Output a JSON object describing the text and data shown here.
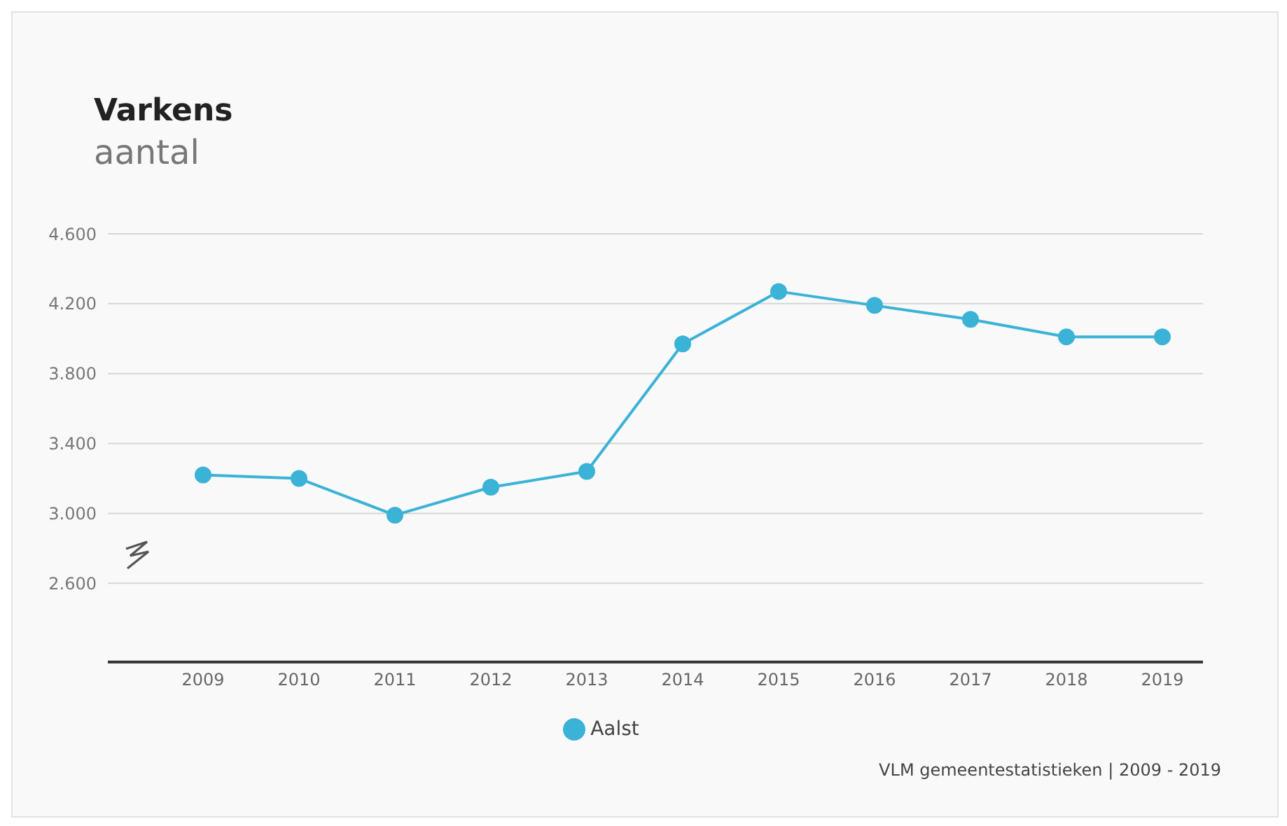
{
  "chart_data": {
    "type": "line",
    "title": "Varkens",
    "subtitle": "aantal",
    "categories": [
      "2009",
      "2010",
      "2011",
      "2012",
      "2013",
      "2014",
      "2015",
      "2016",
      "2017",
      "2018",
      "2019"
    ],
    "series": [
      {
        "name": "Aalst",
        "color": "#3bb3d6",
        "values": [
          3220,
          3200,
          2990,
          3150,
          3240,
          3970,
          4270,
          4190,
          4110,
          4010,
          4010
        ]
      }
    ],
    "ylim": [
      2150,
      4600
    ],
    "yticks": [
      {
        "value": 2600,
        "label": "2.600"
      },
      {
        "value": 3000,
        "label": "3.000"
      },
      {
        "value": 3400,
        "label": "3.400"
      },
      {
        "value": 3800,
        "label": "3.800"
      },
      {
        "value": 4200,
        "label": "4.200"
      },
      {
        "value": 4600,
        "label": "4.600"
      }
    ],
    "grid": "y",
    "legend": "bottom",
    "marker": "circle",
    "line_style": "solid",
    "annotations": [
      "VLM gemeentestatistieken | 2009 - 2019"
    ]
  }
}
